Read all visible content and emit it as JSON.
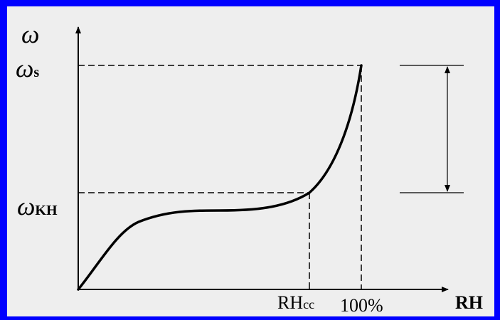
{
  "colors": {
    "border": "#0000ff",
    "background": "#eeeeee",
    "ink": "#000000"
  },
  "labels": {
    "y_axis": "ω",
    "omega_s_symbol": "ω",
    "omega_s_subscript": "s",
    "omega_kh_symbol": "ω",
    "omega_kh_subscript": "KH",
    "rh_cc_main": "RH",
    "rh_cc_subscript": "cc",
    "hundred_percent": "100%",
    "x_axis": "RH"
  }
}
